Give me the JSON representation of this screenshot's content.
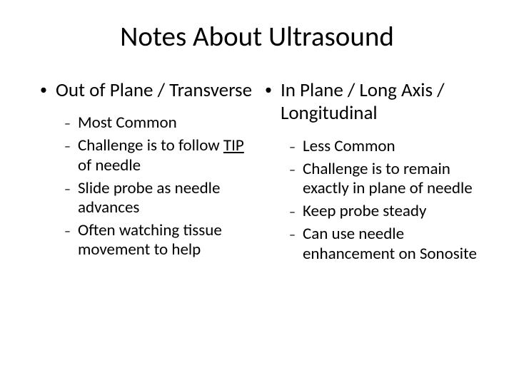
{
  "title": "Notes About Ultrasound",
  "left": {
    "heading": "Out of Plane / Transverse",
    "items": [
      "Most Common",
      "Challenge is to follow TIP of needle",
      "Slide probe as needle advances",
      "Often watching tissue movement to help"
    ]
  },
  "right": {
    "heading": "In Plane / Long Axis / Longitudinal",
    "items": [
      "Less Common",
      "Challenge is to remain exactly in plane of needle",
      "Keep probe steady",
      "Can use needle enhancement on Sonosite"
    ]
  },
  "style": {
    "background_color": "#ffffff",
    "text_color": "#000000",
    "title_fontsize": 39,
    "heading_fontsize": 27,
    "item_fontsize": 23,
    "font_family": "Calibri",
    "main_bullet_marker": "•",
    "sub_bullet_marker": "–"
  }
}
